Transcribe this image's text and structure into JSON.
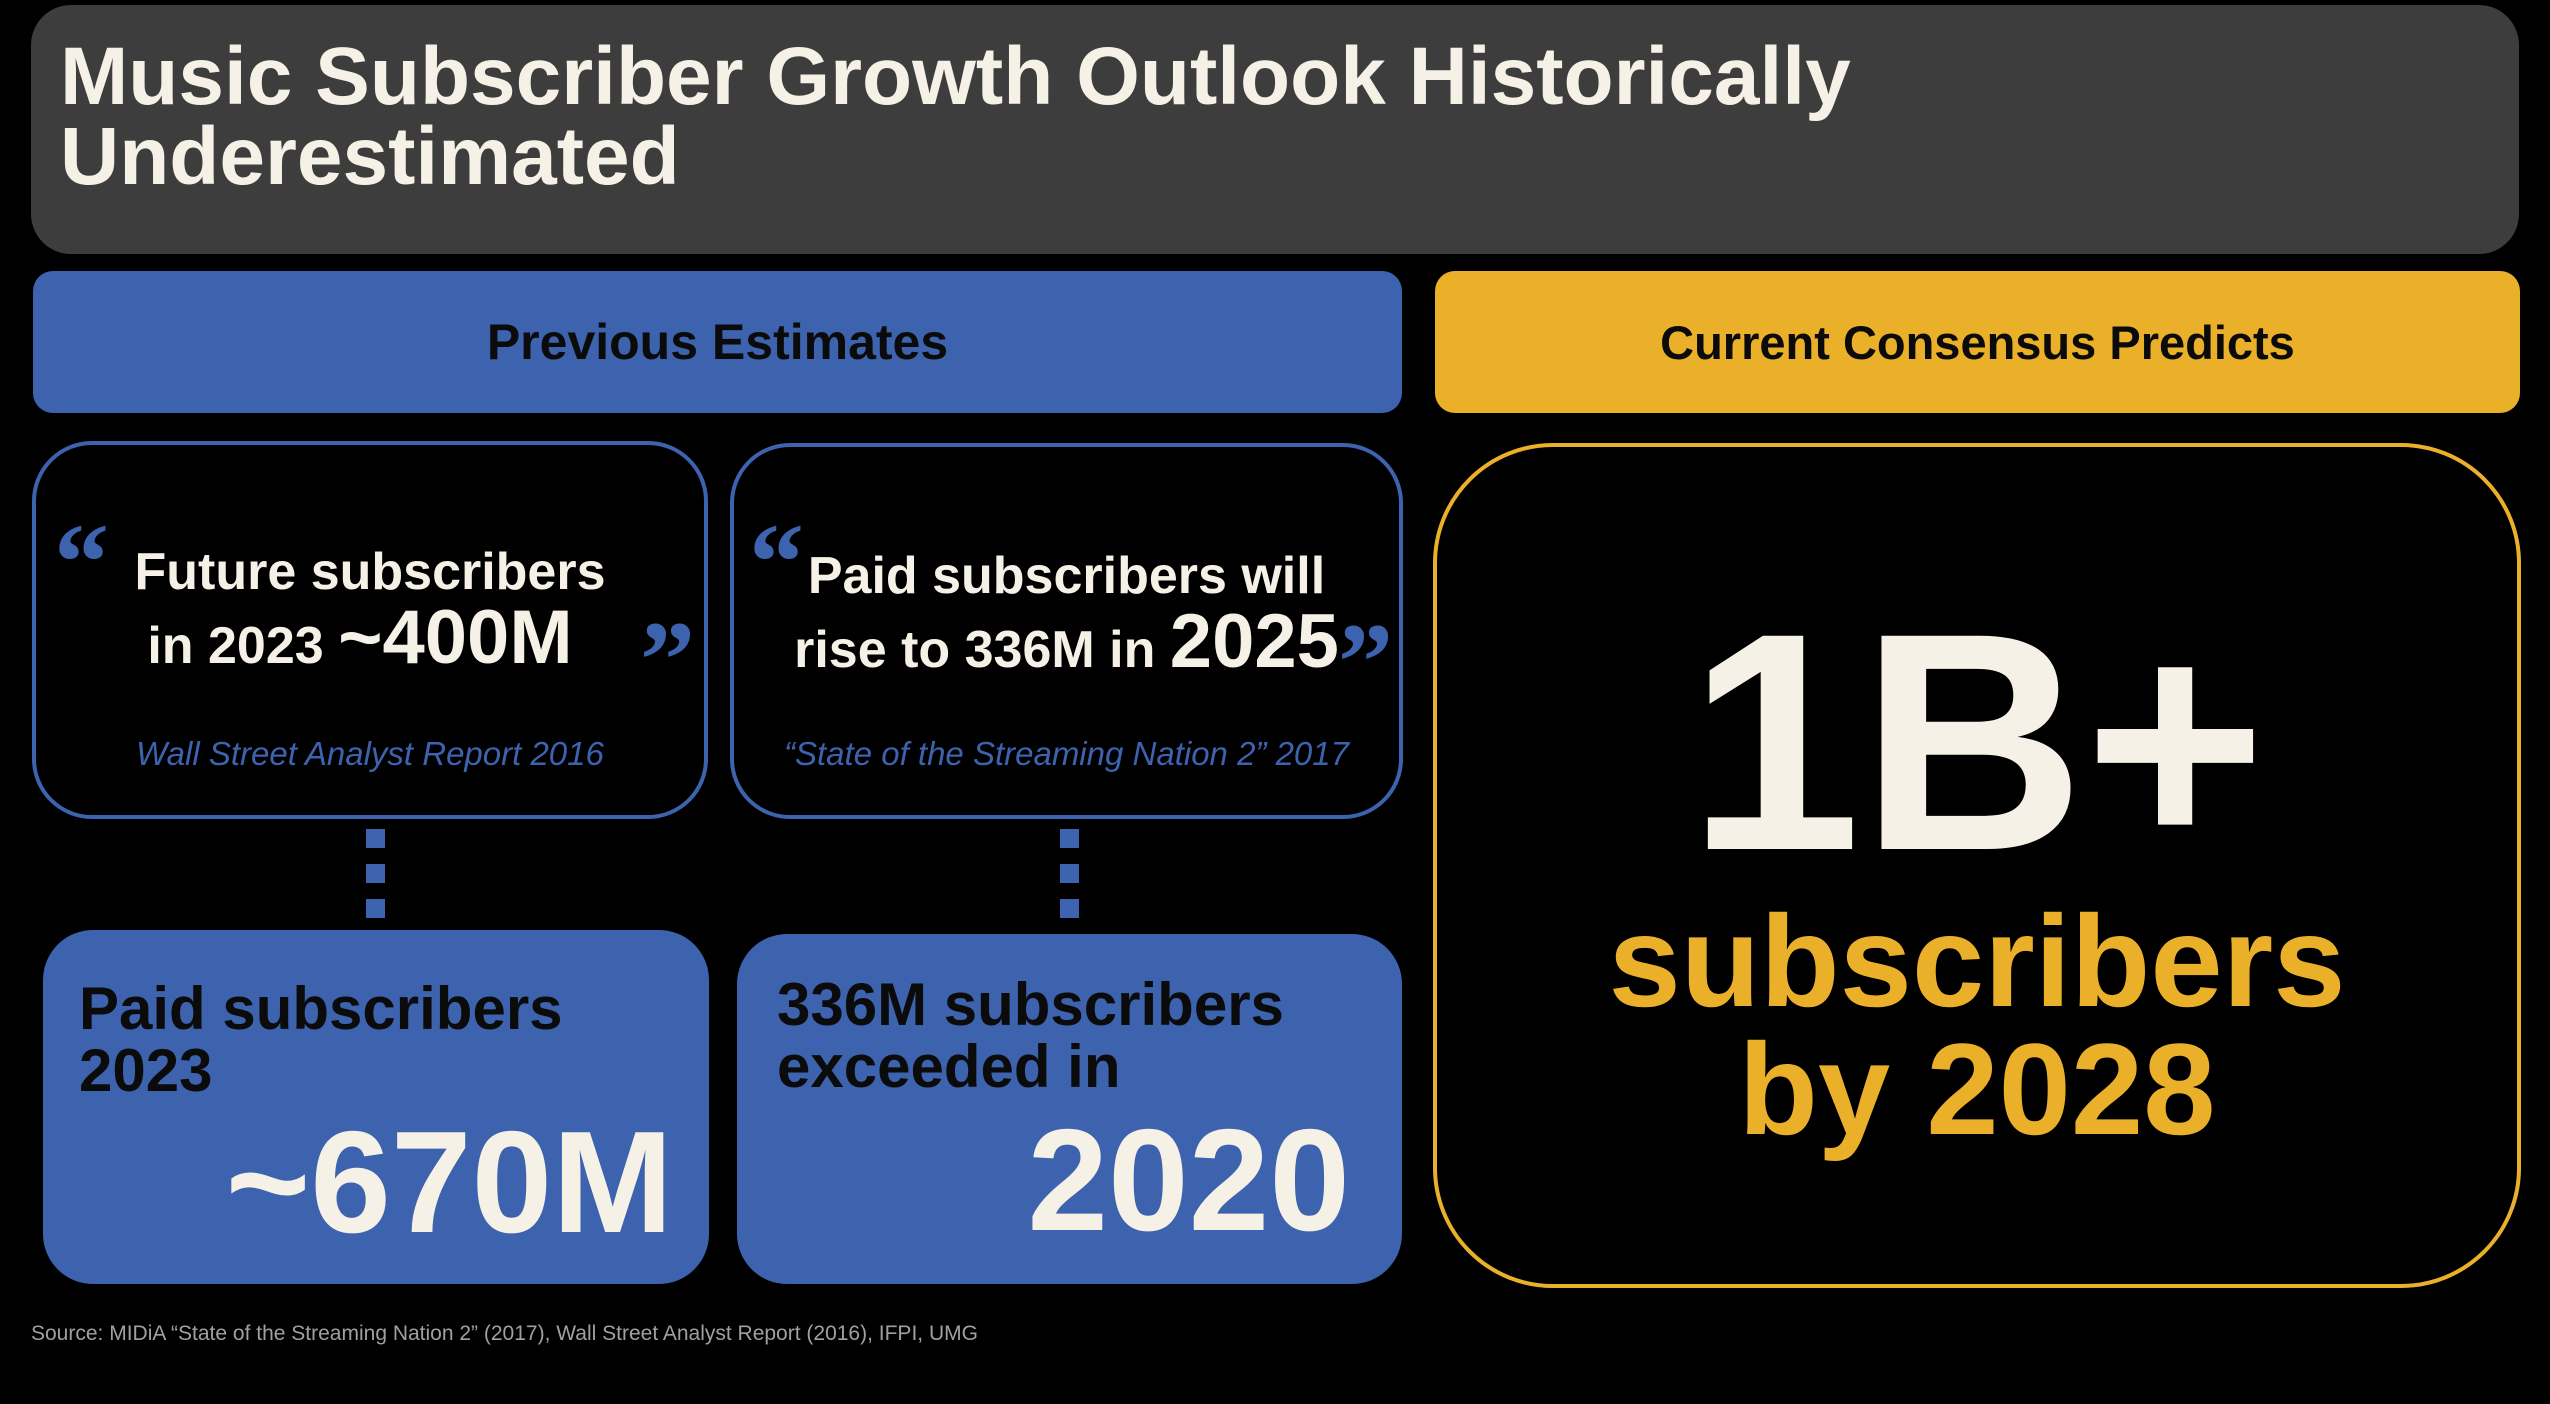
{
  "title": {
    "line1": "Music Subscriber Growth Outlook Historically",
    "line2": "Underestimated"
  },
  "previous_header": "Previous Estimates",
  "current_header": "Current Consensus Predicts",
  "quote1": {
    "open_mark": "“",
    "close_mark": "”",
    "line1": "Future subscribers",
    "line2_prefix": "in 2023 ",
    "line2_big": "~400M",
    "source": "Wall Street Analyst Report 2016"
  },
  "quote2": {
    "open_mark": "“",
    "close_mark": "”",
    "line1": "Paid subscribers will",
    "line2_prefix": "rise to 336M in ",
    "line2_big": "2025",
    "source": "“State of the Streaming Nation 2” 2017"
  },
  "result1": {
    "label_line1": "Paid subscribers",
    "label_line2": "2023",
    "value": "~670M"
  },
  "result2": {
    "label_line1": "336M subscribers",
    "label_line2": "exceeded in",
    "value": "2020"
  },
  "consensus": {
    "big": "1B+",
    "line1": "subscribers",
    "line2": "by 2028"
  },
  "source": "Source: MIDiA “State of the Streaming Nation 2” (2017), Wall Street Analyst Report (2016), IFPI, UMG",
  "colors": {
    "blue": "#3d62ae",
    "gold": "#ebb02a",
    "title_bg": "#3d3d3d",
    "cream": "#f5f1e6"
  }
}
